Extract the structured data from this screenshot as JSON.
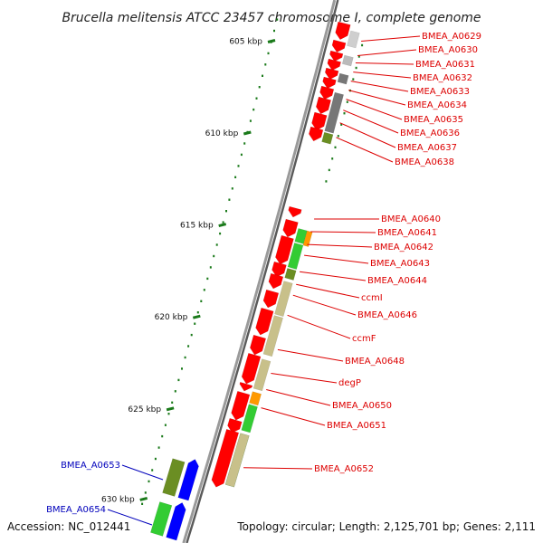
{
  "title": "Brucella melitensis ATCC 23457 chromosome I, complete genome",
  "footer": {
    "accession": "Accession: NC_012441",
    "summary": "Topology: circular; Length: 2,125,701 bp; Genes: 2,111"
  },
  "scale_ticks": [
    "605 kbp",
    "610 kbp",
    "615 kbp",
    "620 kbp",
    "625 kbp",
    "630 kbp"
  ],
  "gene_labels_red": [
    "BMEA_A0629",
    "BMEA_A0630",
    "BMEA_A0631",
    "BMEA_A0632",
    "BMEA_A0633",
    "BMEA_A0634",
    "BMEA_A0635",
    "BMEA_A0636",
    "BMEA_A0637",
    "BMEA_A0638",
    "BMEA_A0640",
    "BMEA_A0641",
    "BMEA_A0642",
    "BMEA_A0643",
    "BMEA_A0644",
    "ccmI",
    "BMEA_A0646",
    "ccmF",
    "BMEA_A0648",
    "degP",
    "BMEA_A0650",
    "BMEA_A0651",
    "BMEA_A0652"
  ],
  "gene_labels_blue": [
    "BMEA_A0653",
    "BMEA_A0654"
  ],
  "colors": {
    "forward_cds": "#ff0000",
    "reverse_cds": "#0000ff",
    "cog_green": "#33cc33",
    "cog_olive": "#6b8e23",
    "cog_khaki": "#c8c08a",
    "cog_orange": "#ff9900",
    "cog_gray": "#777777",
    "label_red": "#dd0000",
    "label_blue": "#0000bb",
    "backbone": "#808080"
  }
}
